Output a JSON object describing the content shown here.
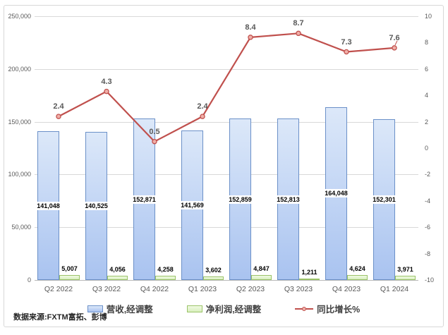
{
  "footer": {
    "source_label": "数据来源:FXTM富拓、彭博"
  },
  "chart_data": {
    "type": "combo-bar-line",
    "title": "",
    "categories": [
      "Q2 2022",
      "Q3 2022",
      "Q4 2022",
      "Q1 2023",
      "Q2 2023",
      "Q3 2023",
      "Q4 2023",
      "Q1 2024"
    ],
    "series": [
      {
        "name": "营收,经调整",
        "type": "bar",
        "axis": "left",
        "values": [
          141048,
          140525,
          152871,
          141569,
          152859,
          152813,
          164048,
          152301
        ],
        "labels": [
          "141,048",
          "140,525",
          "152,871",
          "141,569",
          "152,859",
          "152,813",
          "164,048",
          "152,301"
        ],
        "fill_top": "#dce8f9",
        "fill_bottom": "#a9c3f0",
        "border": "#6b90c8"
      },
      {
        "name": "净利润,经调整",
        "type": "bar",
        "axis": "left",
        "values": [
          5007,
          4056,
          4258,
          3602,
          4847,
          1211,
          4624,
          3971
        ],
        "labels": [
          "5,007",
          "4,056",
          "4,258",
          "3,602",
          "4,847",
          "1,211",
          "4,624",
          "3,971"
        ],
        "fill_top": "#f0fae3",
        "fill_bottom": "#d8efbe",
        "border": "#9bc368"
      },
      {
        "name": "同比增长%",
        "type": "line",
        "axis": "right",
        "values": [
          2.4,
          4.3,
          0.5,
          2.4,
          8.4,
          8.7,
          7.3,
          7.6
        ],
        "labels": [
          "2.4",
          "4.3",
          "0.5",
          "2.4",
          "8.4",
          "8.7",
          "7.3",
          "7.6"
        ],
        "color": "#c0504d",
        "marker_fill": "#f0afa8"
      }
    ],
    "left_axis": {
      "min": 0,
      "max": 250000,
      "step": 50000,
      "tick_labels": [
        "250,000",
        "200,000",
        "150,000",
        "100,000",
        "50,000",
        "0"
      ]
    },
    "right_axis": {
      "min": -10,
      "max": 10,
      "step": 2,
      "tick_labels": [
        "10",
        "8",
        "6",
        "4",
        "2",
        "0",
        "-2",
        "-4",
        "-6",
        "-8",
        "-10"
      ]
    },
    "grid": "horizontal-at-left-ticks",
    "legend_position": "bottom",
    "colors": {
      "gridline": "#d9d9d9",
      "axis_line": "#b9b9b9",
      "axis_text": "#595959",
      "bar_label_text": "#000000",
      "line_label_text": "#595959"
    }
  }
}
